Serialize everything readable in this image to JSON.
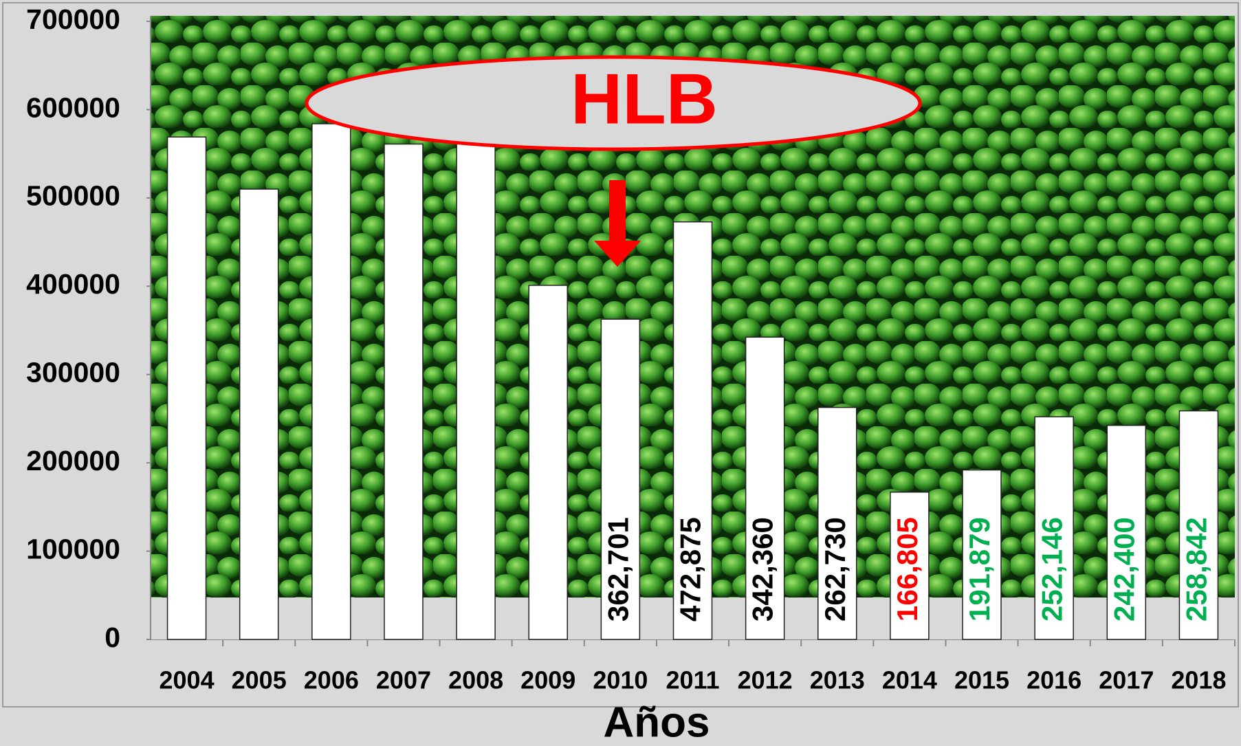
{
  "chart_data": {
    "type": "bar",
    "x_label": "Años",
    "categories": [
      "2004",
      "2005",
      "2006",
      "2007",
      "2008",
      "2009",
      "2010",
      "2011",
      "2012",
      "2013",
      "2014",
      "2015",
      "2016",
      "2017",
      "2018"
    ],
    "values": [
      569000,
      510000,
      584000,
      561000,
      590000,
      401000,
      362701,
      472875,
      342360,
      262730,
      166805,
      191879,
      252146,
      242400,
      258842
    ],
    "value_labels": [
      null,
      null,
      null,
      null,
      null,
      null,
      "362,701",
      "472,875",
      "342,360",
      "262,730",
      "166,805",
      "191,879",
      "252,146",
      "242,400",
      "258,842"
    ],
    "value_label_colors": [
      null,
      null,
      null,
      null,
      null,
      null,
      "#000000",
      "#000000",
      "#000000",
      "#000000",
      "#ff0000",
      "#00b050",
      "#00b050",
      "#00b050",
      "#00b050"
    ],
    "color": "#ffffff",
    "ylim": [
      0,
      700000
    ],
    "yticks": [
      0,
      100000,
      200000,
      300000,
      400000,
      500000,
      600000,
      700000
    ],
    "annotations": [
      {
        "text": "HLB",
        "color": "#ff0000"
      }
    ]
  }
}
